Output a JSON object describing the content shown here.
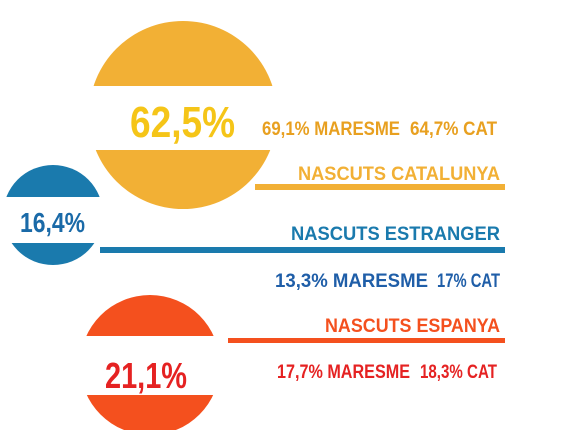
{
  "groups": [
    {
      "share": "62,5%",
      "maresme": "69,1% MARESME",
      "cat": "64,7% CAT",
      "label": "NASCUTS CATALUNYA"
    },
    {
      "share": "16,4%",
      "maresme": "13,3% MARESME",
      "cat": "17% CAT",
      "label": "NASCUTS ESTRANGER"
    },
    {
      "share": "21,1%",
      "maresme": "17,7% MARESME",
      "cat": "18,3% CAT",
      "label": "NASCUTS ESPANYA"
    }
  ]
}
